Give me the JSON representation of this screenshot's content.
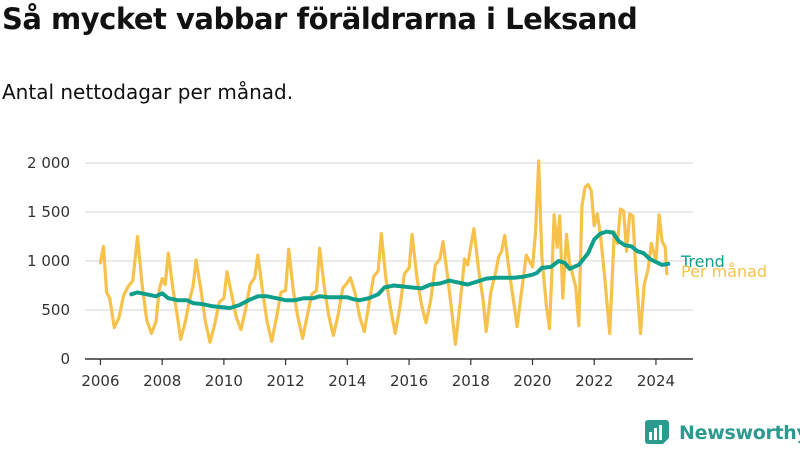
{
  "page": {
    "title": "Så mycket vabbar föräldrarna i Leksand",
    "subtitle": "Antal nettodagar per månad.",
    "brand": "Newsworthy"
  },
  "colors": {
    "per_month": "#f7c24b",
    "trend": "#0f9f8a",
    "grid": "#dddddd",
    "axis": "#333333",
    "brand": "#2c9a8f"
  },
  "chart_data": {
    "type": "line",
    "title": "Så mycket vabbar föräldrarna i Leksand",
    "subtitle": "Antal nettodagar per månad.",
    "xlabel": "",
    "ylabel": "",
    "xlim": [
      2005.5,
      2025.2
    ],
    "ylim": [
      0,
      2000
    ],
    "y_ticks": [
      0,
      500,
      1000,
      1500,
      2000
    ],
    "y_tick_labels": [
      "0",
      "500",
      "1 000",
      "1 500",
      "2 000"
    ],
    "x_ticks": [
      2006,
      2008,
      2010,
      2012,
      2014,
      2016,
      2018,
      2020,
      2022,
      2024
    ],
    "x_tick_labels": [
      "2006",
      "2008",
      "2010",
      "2012",
      "2014",
      "2016",
      "2018",
      "2020",
      "2022",
      "2024"
    ],
    "grid": true,
    "legend": "inline labels at right end of lines",
    "series": [
      {
        "name": "Per månad",
        "key": "per_month",
        "points": [
          [
            2006.0,
            980
          ],
          [
            2006.1,
            1150
          ],
          [
            2006.2,
            680
          ],
          [
            2006.3,
            620
          ],
          [
            2006.45,
            320
          ],
          [
            2006.6,
            420
          ],
          [
            2006.75,
            650
          ],
          [
            2006.9,
            740
          ],
          [
            2007.05,
            800
          ],
          [
            2007.2,
            1250
          ],
          [
            2007.35,
            760
          ],
          [
            2007.5,
            400
          ],
          [
            2007.65,
            260
          ],
          [
            2007.8,
            380
          ],
          [
            2007.9,
            700
          ],
          [
            2008.0,
            820
          ],
          [
            2008.1,
            760
          ],
          [
            2008.2,
            1080
          ],
          [
            2008.35,
            710
          ],
          [
            2008.5,
            420
          ],
          [
            2008.6,
            200
          ],
          [
            2008.75,
            380
          ],
          [
            2008.9,
            620
          ],
          [
            2009.0,
            740
          ],
          [
            2009.1,
            1010
          ],
          [
            2009.25,
            720
          ],
          [
            2009.4,
            380
          ],
          [
            2009.55,
            170
          ],
          [
            2009.7,
            350
          ],
          [
            2009.85,
            580
          ],
          [
            2010.0,
            620
          ],
          [
            2010.1,
            890
          ],
          [
            2010.25,
            660
          ],
          [
            2010.4,
            430
          ],
          [
            2010.55,
            300
          ],
          [
            2010.7,
            500
          ],
          [
            2010.85,
            760
          ],
          [
            2011.0,
            830
          ],
          [
            2011.1,
            1060
          ],
          [
            2011.25,
            700
          ],
          [
            2011.4,
            380
          ],
          [
            2011.55,
            180
          ],
          [
            2011.7,
            420
          ],
          [
            2011.85,
            680
          ],
          [
            2012.0,
            700
          ],
          [
            2012.1,
            1120
          ],
          [
            2012.25,
            700
          ],
          [
            2012.4,
            420
          ],
          [
            2012.55,
            210
          ],
          [
            2012.7,
            440
          ],
          [
            2012.85,
            660
          ],
          [
            2013.0,
            700
          ],
          [
            2013.1,
            1130
          ],
          [
            2013.25,
            740
          ],
          [
            2013.4,
            440
          ],
          [
            2013.55,
            240
          ],
          [
            2013.7,
            450
          ],
          [
            2013.85,
            720
          ],
          [
            2014.0,
            780
          ],
          [
            2014.1,
            830
          ],
          [
            2014.25,
            670
          ],
          [
            2014.4,
            430
          ],
          [
            2014.55,
            280
          ],
          [
            2014.7,
            560
          ],
          [
            2014.85,
            840
          ],
          [
            2015.0,
            900
          ],
          [
            2015.1,
            1280
          ],
          [
            2015.25,
            820
          ],
          [
            2015.4,
            520
          ],
          [
            2015.55,
            260
          ],
          [
            2015.7,
            520
          ],
          [
            2015.85,
            870
          ],
          [
            2016.0,
            930
          ],
          [
            2016.1,
            1270
          ],
          [
            2016.25,
            840
          ],
          [
            2016.4,
            560
          ],
          [
            2016.55,
            370
          ],
          [
            2016.7,
            600
          ],
          [
            2016.85,
            960
          ],
          [
            2017.0,
            1020
          ],
          [
            2017.1,
            1200
          ],
          [
            2017.25,
            840
          ],
          [
            2017.4,
            440
          ],
          [
            2017.5,
            150
          ],
          [
            2017.65,
            560
          ],
          [
            2017.8,
            1020
          ],
          [
            2017.9,
            960
          ],
          [
            2018.0,
            1150
          ],
          [
            2018.1,
            1330
          ],
          [
            2018.25,
            920
          ],
          [
            2018.4,
            600
          ],
          [
            2018.5,
            280
          ],
          [
            2018.65,
            680
          ],
          [
            2018.8,
            880
          ],
          [
            2018.9,
            1040
          ],
          [
            2019.0,
            1100
          ],
          [
            2019.1,
            1260
          ],
          [
            2019.25,
            880
          ],
          [
            2019.4,
            560
          ],
          [
            2019.5,
            330
          ],
          [
            2019.65,
            700
          ],
          [
            2019.8,
            1060
          ],
          [
            2019.9,
            1000
          ],
          [
            2020.0,
            940
          ],
          [
            2020.1,
            1300
          ],
          [
            2020.2,
            2020
          ],
          [
            2020.3,
            1050
          ],
          [
            2020.45,
            540
          ],
          [
            2020.55,
            310
          ],
          [
            2020.65,
            1050
          ],
          [
            2020.7,
            1470
          ],
          [
            2020.8,
            1140
          ],
          [
            2020.88,
            1460
          ],
          [
            2020.98,
            620
          ],
          [
            2021.1,
            1270
          ],
          [
            2021.2,
            980
          ],
          [
            2021.4,
            740
          ],
          [
            2021.5,
            340
          ],
          [
            2021.6,
            1560
          ],
          [
            2021.7,
            1750
          ],
          [
            2021.8,
            1780
          ],
          [
            2021.9,
            1720
          ],
          [
            2022.0,
            1360
          ],
          [
            2022.1,
            1480
          ],
          [
            2022.2,
            1270
          ],
          [
            2022.35,
            800
          ],
          [
            2022.5,
            260
          ],
          [
            2022.65,
            1300
          ],
          [
            2022.75,
            1180
          ],
          [
            2022.85,
            1530
          ],
          [
            2022.95,
            1510
          ],
          [
            2023.05,
            1100
          ],
          [
            2023.15,
            1480
          ],
          [
            2023.25,
            1460
          ],
          [
            2023.35,
            900
          ],
          [
            2023.5,
            260
          ],
          [
            2023.62,
            760
          ],
          [
            2023.75,
            920
          ],
          [
            2023.85,
            1180
          ],
          [
            2024.0,
            1000
          ],
          [
            2024.1,
            1470
          ],
          [
            2024.2,
            1200
          ],
          [
            2024.3,
            1140
          ],
          [
            2024.35,
            870
          ]
        ]
      },
      {
        "name": "Trend",
        "key": "trend",
        "points": [
          [
            2007.0,
            660
          ],
          [
            2007.2,
            680
          ],
          [
            2007.5,
            660
          ],
          [
            2007.8,
            640
          ],
          [
            2008.0,
            670
          ],
          [
            2008.2,
            620
          ],
          [
            2008.5,
            600
          ],
          [
            2008.8,
            600
          ],
          [
            2009.0,
            570
          ],
          [
            2009.3,
            560
          ],
          [
            2009.6,
            540
          ],
          [
            2009.9,
            530
          ],
          [
            2010.2,
            520
          ],
          [
            2010.5,
            550
          ],
          [
            2010.8,
            600
          ],
          [
            2011.1,
            640
          ],
          [
            2011.4,
            640
          ],
          [
            2011.7,
            620
          ],
          [
            2012.0,
            600
          ],
          [
            2012.3,
            600
          ],
          [
            2012.6,
            620
          ],
          [
            2012.9,
            620
          ],
          [
            2013.1,
            640
          ],
          [
            2013.4,
            630
          ],
          [
            2013.7,
            630
          ],
          [
            2014.0,
            630
          ],
          [
            2014.2,
            610
          ],
          [
            2014.4,
            600
          ],
          [
            2014.7,
            620
          ],
          [
            2015.0,
            660
          ],
          [
            2015.2,
            730
          ],
          [
            2015.5,
            750
          ],
          [
            2015.8,
            740
          ],
          [
            2016.1,
            730
          ],
          [
            2016.4,
            720
          ],
          [
            2016.7,
            760
          ],
          [
            2017.0,
            770
          ],
          [
            2017.3,
            800
          ],
          [
            2017.6,
            780
          ],
          [
            2017.9,
            760
          ],
          [
            2018.2,
            790
          ],
          [
            2018.5,
            820
          ],
          [
            2018.8,
            830
          ],
          [
            2019.1,
            830
          ],
          [
            2019.4,
            830
          ],
          [
            2019.7,
            840
          ],
          [
            2020.0,
            860
          ],
          [
            2020.15,
            880
          ],
          [
            2020.3,
            930
          ],
          [
            2020.6,
            940
          ],
          [
            2020.85,
            1000
          ],
          [
            2021.05,
            980
          ],
          [
            2021.2,
            920
          ],
          [
            2021.5,
            960
          ],
          [
            2021.8,
            1080
          ],
          [
            2022.0,
            1220
          ],
          [
            2022.2,
            1280
          ],
          [
            2022.4,
            1300
          ],
          [
            2022.6,
            1290
          ],
          [
            2022.8,
            1200
          ],
          [
            2023.0,
            1160
          ],
          [
            2023.2,
            1150
          ],
          [
            2023.4,
            1100
          ],
          [
            2023.6,
            1080
          ],
          [
            2023.8,
            1020
          ],
          [
            2024.0,
            990
          ],
          [
            2024.2,
            960
          ],
          [
            2024.4,
            970
          ]
        ]
      }
    ]
  }
}
